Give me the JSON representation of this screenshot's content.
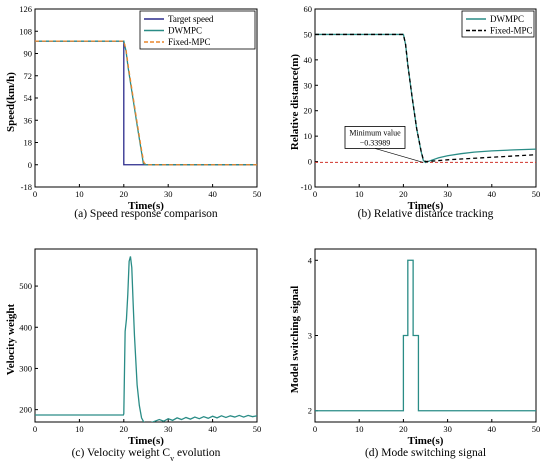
{
  "colors": {
    "target": "#2b2b8c",
    "dwmpc": "#2a8c86",
    "fixed": "#e8852c",
    "fixed_dist": "#000000",
    "min_line": "#d0342c"
  },
  "chart_data": [
    {
      "type": "line",
      "caption": "(a) Speed response comparison",
      "xlabel": "Time(s)",
      "ylabel": "Speed(km/h)",
      "xlim": [
        0,
        50
      ],
      "ylim": [
        -18,
        126
      ],
      "xticks": [
        0,
        10,
        20,
        30,
        40,
        50
      ],
      "yticks": [
        -18,
        0,
        18,
        36,
        54,
        72,
        90,
        108,
        126
      ],
      "legend_position": "top-right",
      "series": [
        {
          "name": "Target speed",
          "color_key": "target",
          "dash": false,
          "x": [
            0,
            20,
            20,
            50
          ],
          "y": [
            100,
            100,
            0,
            0
          ]
        },
        {
          "name": "DWMPC",
          "color_key": "dwmpc",
          "dash": false,
          "x": [
            0,
            20,
            20.5,
            21,
            22,
            23,
            24,
            24.4,
            25,
            50
          ],
          "y": [
            100,
            100,
            92,
            78,
            55,
            32,
            10,
            1,
            0,
            0
          ]
        },
        {
          "name": "Fixed-MPC",
          "color_key": "fixed",
          "dash": true,
          "x": [
            0,
            20,
            20.5,
            21,
            22,
            23,
            24,
            24.5,
            25,
            50
          ],
          "y": [
            100,
            100,
            93,
            80,
            57,
            34,
            12,
            2,
            0,
            0
          ]
        }
      ]
    },
    {
      "type": "line",
      "caption": "(b) Relative distance tracking",
      "xlabel": "Time(s)",
      "ylabel": "Relative distance(m)",
      "xlim": [
        0,
        50
      ],
      "ylim": [
        -10,
        60
      ],
      "xticks": [
        0,
        10,
        20,
        30,
        40,
        50
      ],
      "yticks": [
        -10,
        0,
        10,
        20,
        30,
        40,
        50,
        60
      ],
      "legend_position": "top-right",
      "annotation": {
        "label": "Minimum value",
        "value": "−0.33989",
        "x": 24.5,
        "y": -0.33989
      },
      "series": [
        {
          "name": "DWMPC",
          "color_key": "dwmpc",
          "dash": false,
          "x": [
            0,
            20,
            20.5,
            21,
            22,
            23,
            24,
            24.5,
            25,
            26,
            28,
            30,
            33,
            36,
            40,
            45,
            50
          ],
          "y": [
            50,
            50,
            46,
            38,
            25,
            13,
            4,
            0.5,
            -0.34,
            0.3,
            1.5,
            2.3,
            3.1,
            3.7,
            4.2,
            4.6,
            4.9
          ]
        },
        {
          "name": "Fixed-MPC",
          "color_key": "fixed_dist",
          "dash": true,
          "x": [
            0,
            20,
            20.5,
            21,
            22,
            23,
            24,
            24.5,
            25,
            26,
            28,
            30,
            33,
            36,
            40,
            45,
            50
          ],
          "y": [
            50,
            50,
            46,
            38,
            25,
            13,
            4.2,
            0.8,
            0,
            0.1,
            0.4,
            0.7,
            1.0,
            1.3,
            1.7,
            2.2,
            2.7
          ]
        }
      ]
    },
    {
      "type": "line",
      "caption": "(c) Velocity weight C",
      "caption_sub": "v",
      "caption_tail": " evolution",
      "xlabel": "Time(s)",
      "ylabel": "Velocity weight",
      "xlim": [
        0,
        50
      ],
      "ylim": [
        170,
        590
      ],
      "xticks": [
        0,
        10,
        20,
        30,
        40,
        50
      ],
      "yticks": [
        200,
        300,
        400,
        500
      ],
      "series": [
        {
          "name": "",
          "color_key": "dwmpc",
          "dash": false,
          "x": [
            0,
            19.9,
            20.0,
            20.3,
            20.6,
            20.9,
            21.2,
            21.5,
            21.8,
            22.1,
            22.4,
            22.7,
            23.0,
            23.5,
            24.0,
            24.5,
            25,
            26,
            27,
            28,
            29,
            30,
            31,
            32,
            33,
            34,
            35,
            36,
            37,
            38,
            39,
            40,
            41,
            42,
            43,
            44,
            45,
            46,
            47,
            48,
            49,
            50
          ],
          "y": [
            187,
            187,
            190,
            390,
            420,
            480,
            560,
            572,
            545,
            460,
            380,
            320,
            260,
            210,
            180,
            170,
            165,
            168,
            172,
            176,
            172,
            178,
            174,
            180,
            176,
            181,
            177,
            182,
            178,
            183,
            179,
            184,
            180,
            185,
            181,
            185,
            182,
            186,
            182,
            186,
            183,
            185
          ]
        }
      ]
    },
    {
      "type": "line",
      "caption": "(d) Mode switching signal",
      "xlabel": "Time(s)",
      "ylabel": "Model switching signal",
      "xlim": [
        0,
        50
      ],
      "ylim": [
        1.85,
        4.15
      ],
      "xticks": [
        0,
        10,
        20,
        30,
        40,
        50
      ],
      "yticks": [
        2,
        3,
        4
      ],
      "series": [
        {
          "name": "",
          "color_key": "dwmpc",
          "dash": false,
          "x": [
            0,
            20,
            20,
            21,
            21,
            22.2,
            22.2,
            23.4,
            23.4,
            50
          ],
          "y": [
            2,
            2,
            3,
            3,
            4,
            4,
            3,
            3,
            2,
            2
          ]
        }
      ]
    }
  ]
}
